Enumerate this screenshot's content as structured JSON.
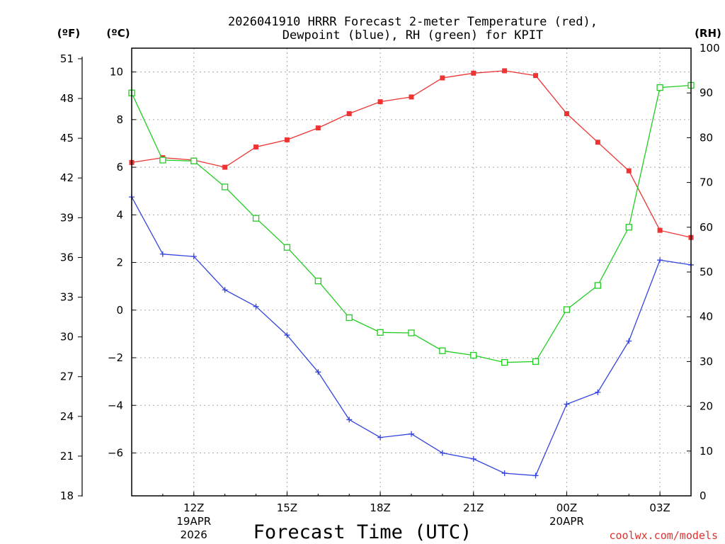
{
  "chart_data": {
    "type": "line",
    "title_line1": "2026041910 HRRR Forecast 2-meter Temperature (red),",
    "title_line2": "Dewpoint (blue), RH (green) for KPIT",
    "xlabel": "Forecast Time (UTC)",
    "credit": "coolwx.com/models",
    "left_outer_axis_label": "(ºF)",
    "left_inner_axis_label": "(ºC)",
    "right_axis_label": "(RH)",
    "x_hours": [
      10,
      11,
      12,
      13,
      14,
      15,
      16,
      17,
      18,
      19,
      20,
      21,
      22,
      23,
      24,
      25,
      26,
      27,
      28
    ],
    "xlim": [
      10,
      28
    ],
    "x_ticks": [
      {
        "hour": 12,
        "label": "12Z",
        "sub1": "19APR",
        "sub2": "2026"
      },
      {
        "hour": 15,
        "label": "15Z",
        "sub1": "",
        "sub2": ""
      },
      {
        "hour": 18,
        "label": "18Z",
        "sub1": "",
        "sub2": ""
      },
      {
        "hour": 21,
        "label": "21Z",
        "sub1": "",
        "sub2": ""
      },
      {
        "hour": 24,
        "label": "00Z",
        "sub1": "20APR",
        "sub2": ""
      },
      {
        "hour": 27,
        "label": "03Z",
        "sub1": "",
        "sub2": ""
      }
    ],
    "celsius_ylim": [
      -7.8,
      11.0
    ],
    "celsius_ticks": [
      "-6",
      "-4",
      "-2",
      "0",
      "2",
      "4",
      "6",
      "8",
      "10"
    ],
    "fahrenheit_ylim": [
      18,
      51.8
    ],
    "fahrenheit_ticks": [
      "18",
      "21",
      "24",
      "27",
      "30",
      "33",
      "36",
      "39",
      "42",
      "45",
      "48",
      "51"
    ],
    "rh_ylim": [
      0,
      100
    ],
    "rh_ticks": [
      "0",
      "10",
      "20",
      "30",
      "40",
      "50",
      "60",
      "70",
      "80",
      "90",
      "100"
    ],
    "series": [
      {
        "name": "2-meter Temperature",
        "unit": "C",
        "color": "#ee3333",
        "marker": "filled-square",
        "values": [
          6.2,
          6.4,
          6.3,
          6.0,
          6.85,
          7.15,
          7.65,
          8.25,
          8.75,
          8.95,
          9.75,
          9.95,
          10.05,
          9.85,
          8.25,
          7.05,
          5.85,
          3.35,
          3.05
        ]
      },
      {
        "name": "Dewpoint",
        "unit": "C",
        "color": "#3344dd",
        "marker": "plus",
        "values": [
          4.75,
          2.35,
          2.25,
          0.85,
          0.15,
          -1.05,
          -2.6,
          -4.6,
          -5.35,
          -5.2,
          -6.0,
          -6.25,
          -6.85,
          -6.95,
          -3.95,
          -3.45,
          -1.3,
          2.1,
          1.9
        ]
      },
      {
        "name": "RH",
        "unit": "%",
        "color": "#22cc22",
        "marker": "open-square",
        "values": [
          90,
          75,
          74.8,
          69,
          62,
          55.5,
          48,
          39.8,
          36.5,
          36.4,
          32.4,
          31.4,
          29.8,
          30,
          41.6,
          47,
          60,
          91.2,
          91.7
        ]
      }
    ]
  }
}
